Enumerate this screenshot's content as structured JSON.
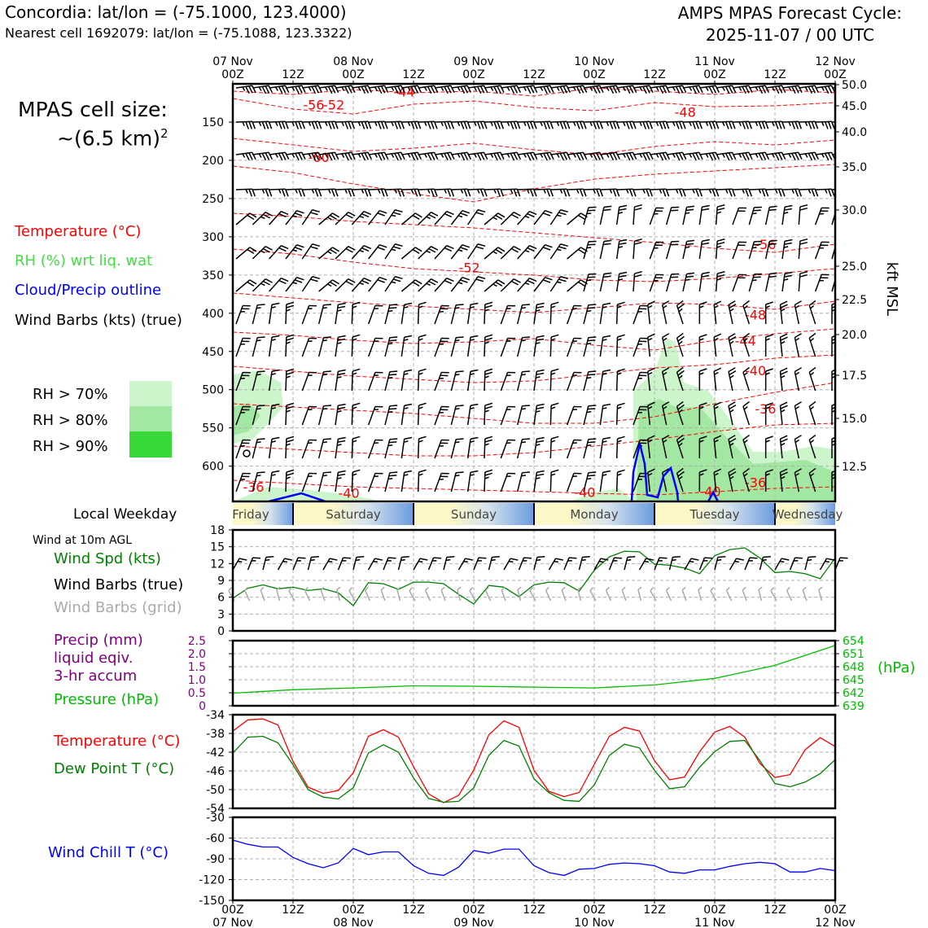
{
  "header": {
    "location": "Concordia: lat/lon = (-75.1000, 123.4000)",
    "nearest": "Nearest cell 1692079: lat/lon = (-75.1088, 123.3322)",
    "cycle_title": "AMPS MPAS Forecast Cycle:",
    "cycle_time": "2025-11-07 / 00 UTC"
  },
  "left_panel": {
    "cell_size_label": "MPAS cell size:",
    "cell_size_value": "~(6.5 km)",
    "cell_size_exp": "2",
    "legend": {
      "temperature": "Temperature (°C)",
      "rh": "RH (%) wrt liq. wat",
      "cloud": "Cloud/Precip outline",
      "wind": "Wind Barbs (kts) (true)"
    },
    "rh_levels": [
      "RH > 70%",
      "RH > 80%",
      "RH > 90%"
    ],
    "local_weekday_label": "Local Weekday",
    "wind_10m_label": "Wind at 10m AGL",
    "wind_spd_label": "Wind Spd (kts)",
    "wind_barbs_true_label": "Wind Barbs (true)",
    "wind_barbs_grid_label": "Wind Barbs (grid)",
    "precip_label1": "Precip (mm)",
    "precip_label2": "liquid eqiv.",
    "precip_label3": "3-hr accum",
    "pressure_label": "Pressure (hPa)",
    "temp_label": "Temperature (°C)",
    "dew_label": "Dew Point T (°C)",
    "wind_chill_label": "Wind Chill T (°C)"
  },
  "colors": {
    "temperature": "#ff0000",
    "rh70": "#ccf5cc",
    "rh80": "#a2e8a2",
    "rh90": "#38d838",
    "cloud": "#0000ff",
    "wind_spd": "#008000",
    "grid_barb": "#aaaaaa",
    "precip": "#800080",
    "pressure": "#00bb00",
    "dewpoint": "#008000",
    "wind_chill": "#0000ff"
  },
  "chart_data": [
    {
      "type": "line",
      "name": "time-height cross section",
      "xlabel_top": [
        "07 Nov\n00Z",
        "12Z",
        "08 Nov\n00Z",
        "12Z",
        "09 Nov\n00Z",
        "12Z",
        "10 Nov\n00Z",
        "12Z",
        "11 Nov\n00Z",
        "12Z",
        "12 Nov\n00Z"
      ],
      "x_hours_range": [
        0,
        120
      ],
      "pressure_ticks": [
        "150",
        "200",
        "250",
        "300",
        "350",
        "400",
        "450",
        "500",
        "550",
        "600"
      ],
      "pressure_range_hPa": [
        100,
        645
      ],
      "kft_ticks": [
        "50.0",
        "45.0",
        "40.0",
        "35.0",
        "30.0",
        "25.0",
        "22.5",
        "20.0",
        "17.5",
        "15.0",
        "12.5"
      ],
      "kft_axis_label": "kft MSL",
      "temperature_contour_labels": [
        {
          "text": "-56",
          "hour": 14,
          "hPa": 128
        },
        {
          "text": "-52",
          "hour": 18,
          "hPa": 128
        },
        {
          "text": "-44",
          "hour": 32,
          "hPa": 111
        },
        {
          "text": "-48",
          "hour": 88,
          "hPa": 138
        },
        {
          "text": "-60",
          "hour": 15,
          "hPa": 197
        },
        {
          "text": "-56",
          "hour": 104,
          "hPa": 311
        },
        {
          "text": "-52",
          "hour": 45,
          "hPa": 341
        },
        {
          "text": "-48",
          "hour": 102,
          "hPa": 403
        },
        {
          "text": "-44",
          "hour": 100,
          "hPa": 437
        },
        {
          "text": "-40",
          "hour": 102,
          "hPa": 476
        },
        {
          "text": "-36",
          "hour": 104,
          "hPa": 526
        },
        {
          "text": "-36",
          "hour": 2,
          "hPa": 628
        },
        {
          "text": "-36",
          "hour": 102,
          "hPa": 622
        },
        {
          "text": "-40",
          "hour": 21,
          "hPa": 636
        },
        {
          "text": "-40",
          "hour": 68,
          "hPa": 635
        },
        {
          "text": "-40",
          "hour": 93,
          "hPa": 634
        }
      ]
    },
    {
      "type": "line",
      "name": "Local Weekday",
      "days": [
        "Friday",
        "Saturday",
        "Sunday",
        "Monday",
        "Tuesday",
        "Wednesday"
      ]
    },
    {
      "type": "line",
      "name": "Wind speed 10m",
      "ylabel": "Wind Spd (kts)",
      "ylim": [
        0,
        18
      ],
      "yticks": [
        "0",
        "3",
        "6",
        "9",
        "12",
        "15",
        "18"
      ],
      "x_hours": [
        0,
        3,
        6,
        9,
        12,
        15,
        18,
        21,
        24,
        27,
        30,
        33,
        36,
        39,
        42,
        45,
        48,
        51,
        54,
        57,
        60,
        63,
        66,
        69,
        72,
        75,
        78,
        81,
        84,
        87,
        90,
        93,
        96,
        99,
        102,
        105,
        108,
        111,
        114,
        117,
        120
      ],
      "values": [
        5.8,
        7.6,
        8.2,
        7.5,
        7.8,
        7.2,
        7.5,
        6.8,
        4.5,
        8.6,
        8.4,
        7.4,
        8.7,
        8.7,
        8.4,
        6.5,
        4.8,
        8.1,
        7.8,
        6.1,
        8.2,
        8.7,
        8.6,
        7.1,
        10.8,
        13.2,
        14.2,
        14.1,
        11.9,
        11.7,
        11.2,
        10.2,
        13.4,
        14.5,
        14.8,
        13.0,
        10.4,
        10.6,
        10.2,
        9.3,
        13.0
      ]
    },
    {
      "type": "line",
      "name": "Precip and pressure",
      "left_ylabel": "Precip (mm)",
      "left_ylim": [
        0,
        2.5
      ],
      "left_yticks": [
        "0",
        "0.5",
        "1.0",
        "1.5",
        "2.0",
        "2.5"
      ],
      "right_ylabel": "(hPa)",
      "right_ylim": [
        639,
        654
      ],
      "right_yticks": [
        "639",
        "642",
        "645",
        "648",
        "651",
        "654"
      ],
      "precip_values": [],
      "pressure_x_hours": [
        0,
        12,
        24,
        36,
        48,
        60,
        72,
        84,
        96,
        108,
        120
      ],
      "pressure_values": [
        641.9,
        642.7,
        643.1,
        643.6,
        643.5,
        643.3,
        643.1,
        643.8,
        645.3,
        648.3,
        652.9
      ]
    },
    {
      "type": "line",
      "name": "Temperature and dew point",
      "ylim": [
        -54,
        -34
      ],
      "yticks": [
        "-54",
        "-50",
        "-46",
        "-42",
        "-38",
        "-34"
      ],
      "x_hours": [
        0,
        3,
        6,
        9,
        12,
        15,
        18,
        21,
        24,
        27,
        30,
        33,
        36,
        39,
        42,
        45,
        48,
        51,
        54,
        57,
        60,
        63,
        66,
        69,
        72,
        75,
        78,
        81,
        84,
        87,
        90,
        93,
        96,
        99,
        102,
        105,
        108,
        111,
        114,
        117,
        120
      ],
      "temperature": [
        -37.5,
        -35.1,
        -34.9,
        -36.2,
        -44.0,
        -49.5,
        -50.8,
        -50.2,
        -46.4,
        -38.6,
        -37.2,
        -38.8,
        -45.1,
        -50.9,
        -52.8,
        -51.2,
        -45.8,
        -38.3,
        -35.3,
        -36.7,
        -45.9,
        -50.4,
        -51.5,
        -50.6,
        -44.6,
        -38.6,
        -36.7,
        -37.5,
        -43.8,
        -47.9,
        -47.3,
        -41.9,
        -37.7,
        -36.5,
        -38.8,
        -44.4,
        -47.4,
        -46.8,
        -41.5,
        -38.9,
        -40.8
      ],
      "dewpoint": [
        -42.2,
        -38.8,
        -38.6,
        -40.0,
        -44.7,
        -50.0,
        -51.6,
        -52.0,
        -49.6,
        -42.2,
        -40.4,
        -42.0,
        -47.5,
        -51.9,
        -52.7,
        -52.5,
        -49.6,
        -42.7,
        -39.5,
        -40.7,
        -47.7,
        -50.7,
        -52.3,
        -52.5,
        -49.0,
        -42.7,
        -40.3,
        -41.1,
        -45.9,
        -49.8,
        -49.4,
        -45.2,
        -41.9,
        -39.7,
        -39.5,
        -43.8,
        -48.7,
        -49.4,
        -48.4,
        -46.6,
        -43.6
      ]
    },
    {
      "type": "line",
      "name": "Wind chill",
      "ylim": [
        -150,
        -30
      ],
      "yticks": [
        "-150",
        "-120",
        "-90",
        "-60",
        "-30"
      ],
      "x_hours": [
        0,
        3,
        6,
        9,
        12,
        15,
        18,
        21,
        24,
        27,
        30,
        33,
        36,
        39,
        42,
        45,
        48,
        51,
        54,
        57,
        60,
        63,
        66,
        69,
        72,
        75,
        78,
        81,
        84,
        87,
        90,
        93,
        96,
        99,
        102,
        105,
        108,
        111,
        114,
        117,
        120
      ],
      "values": [
        -63,
        -69,
        -73,
        -73,
        -88,
        -97,
        -103,
        -96,
        -75,
        -84,
        -80,
        -80,
        -100,
        -111,
        -114,
        -102,
        -78,
        -82,
        -76,
        -76,
        -100,
        -110,
        -114,
        -105,
        -104,
        -98,
        -96,
        -97,
        -100,
        -109,
        -111,
        -106,
        -106,
        -101,
        -97,
        -95,
        -97,
        -109,
        -109,
        -104,
        -107
      ],
      "xlabel_bottom": [
        "00Z\n07 Nov",
        "12Z",
        "00Z\n08 Nov",
        "12Z",
        "00Z\n09 Nov",
        "12Z",
        "00Z\n10 Nov",
        "12Z",
        "00Z\n11 Nov",
        "12Z",
        "00Z\n12 Nov"
      ]
    }
  ]
}
